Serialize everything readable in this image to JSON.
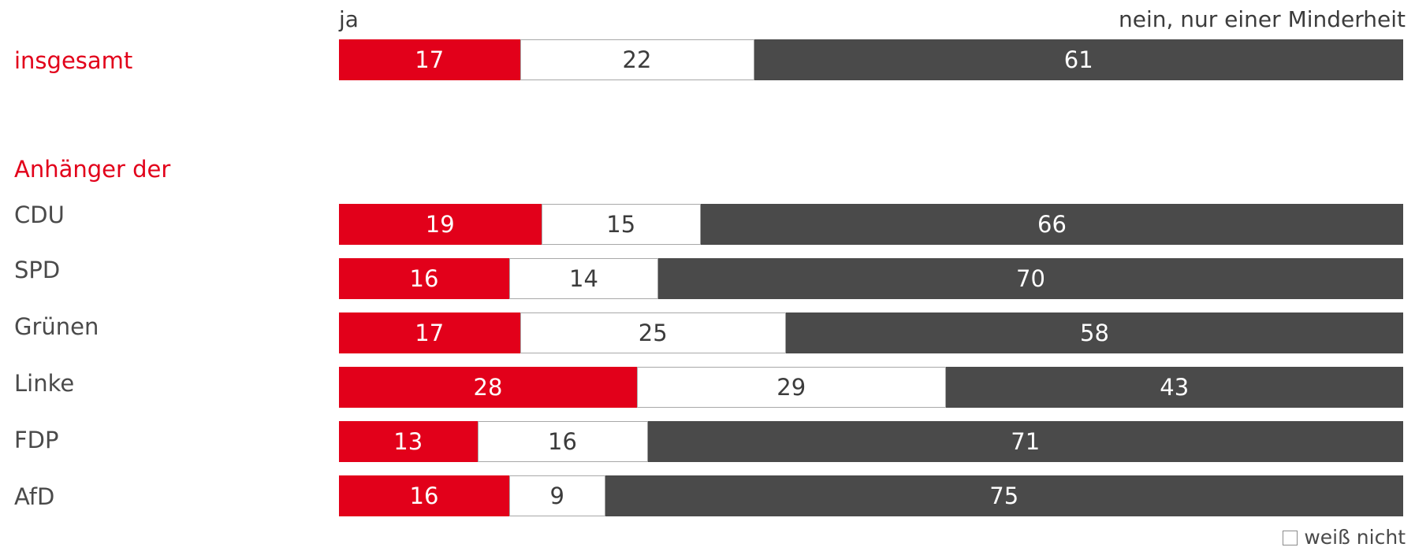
{
  "chart_data": {
    "type": "bar",
    "orientation": "horizontal",
    "stacked": true,
    "xlim": [
      0,
      100
    ],
    "categories": [
      "insgesamt",
      "CDU",
      "SPD",
      "Grünen",
      "Linke",
      "FDP",
      "AfD"
    ],
    "group_heading": "Anhänger der",
    "series": [
      {
        "key": "ja",
        "name": "ja",
        "color": "#e2001a",
        "values": [
          17,
          19,
          16,
          17,
          28,
          13,
          16
        ]
      },
      {
        "key": "wn",
        "name": "weiß nicht",
        "color": "#ffffff",
        "values": [
          22,
          15,
          14,
          25,
          29,
          16,
          9
        ]
      },
      {
        "key": "nein",
        "name": "nein, nur einer Minderheit",
        "color": "#4a4a4a",
        "values": [
          61,
          66,
          70,
          58,
          43,
          71,
          75
        ]
      }
    ]
  },
  "colors": {
    "accent": "#e2001a",
    "dark": "#4a4a4a",
    "text": "#4a4a4a"
  },
  "icons": {
    "legend_box": "square-outline-icon"
  }
}
